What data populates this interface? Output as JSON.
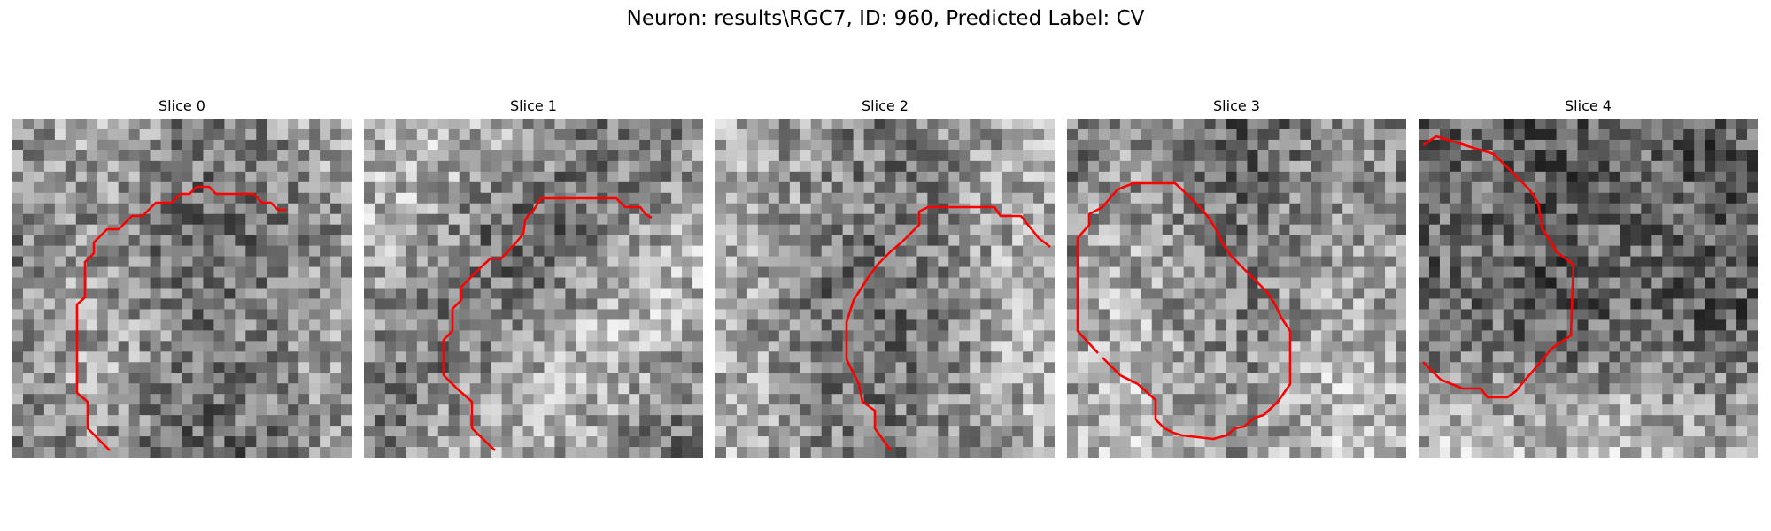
{
  "figure": {
    "title": "Neuron: results\\RGC7, ID: 960, Predicted Label: CV",
    "contour_color": "#ff0000",
    "panels": [
      {
        "title": "Slice 0"
      },
      {
        "title": "Slice 1"
      },
      {
        "title": "Slice 2"
      },
      {
        "title": "Slice 3"
      },
      {
        "title": "Slice 4"
      }
    ]
  }
}
